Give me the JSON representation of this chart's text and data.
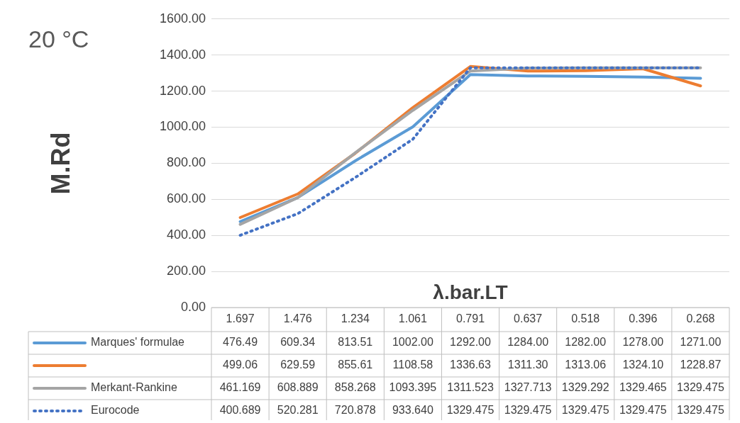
{
  "chart_data": {
    "type": "line",
    "title": "20 °C",
    "xlabel": "λ.bar.LT",
    "ylabel": "M.Rd",
    "categories": [
      "1.697",
      "1.476",
      "1.234",
      "1.061",
      "0.791",
      "0.637",
      "0.518",
      "0.396",
      "0.268"
    ],
    "series": [
      {
        "name": "Marques' formulae",
        "color": "#5b9bd5",
        "values": [
          476.49,
          609.34,
          813.51,
          1002.0,
          1292.0,
          1284.0,
          1282.0,
          1278.0,
          1271.0
        ],
        "value_labels": [
          "476.49",
          "609.34",
          "813.51",
          "1002.00",
          "1292.00",
          "1284.00",
          "1282.00",
          "1278.00",
          "1271.00"
        ]
      },
      {
        "color": "#ed7d31",
        "values": [
          499.06,
          629.59,
          855.61,
          1108.58,
          1336.63,
          1311.3,
          1313.06,
          1324.1,
          1228.87
        ],
        "value_labels": [
          "499.06",
          "629.59",
          "855.61",
          "1108.58",
          "1336.63",
          "1311.30",
          "1313.06",
          "1324.10",
          "1228.87"
        ]
      },
      {
        "name": "Merkant-Rankine",
        "color": "#a5a5a5",
        "values": [
          461.169,
          608.889,
          858.268,
          1093.395,
          1311.523,
          1327.713,
          1329.292,
          1329.465,
          1329.475
        ],
        "value_labels": [
          "461.169",
          "608.889",
          "858.268",
          "1093.395",
          "1311.523",
          "1327.713",
          "1329.292",
          "1329.465",
          "1329.475"
        ]
      },
      {
        "name": "Eurocode",
        "color": "#4472c4",
        "line_style": "dotted",
        "values": [
          400.689,
          520.281,
          720.878,
          933.64,
          1329.475,
          1329.475,
          1329.475,
          1329.475,
          1329.475
        ],
        "value_labels": [
          "400.689",
          "520.281",
          "720.878",
          "933.640",
          "1329.475",
          "1329.475",
          "1329.475",
          "1329.475",
          "1329.475"
        ]
      }
    ],
    "ylim": [
      0,
      1600
    ],
    "yticks": [
      {
        "value": 0,
        "label": "0.00"
      },
      {
        "value": 200,
        "label": "200.00"
      },
      {
        "value": 400,
        "label": "400.00"
      },
      {
        "value": 600,
        "label": "600.00"
      },
      {
        "value": 800,
        "label": "800.00"
      },
      {
        "value": 1000,
        "label": "1000.00"
      },
      {
        "value": 1200,
        "label": "1200.00"
      },
      {
        "value": 1400,
        "label": "1400.00"
      },
      {
        "value": 1600,
        "label": "1600.00"
      }
    ],
    "grid": "y",
    "legend": "bottom",
    "marker": "none",
    "line_style": "solid"
  }
}
